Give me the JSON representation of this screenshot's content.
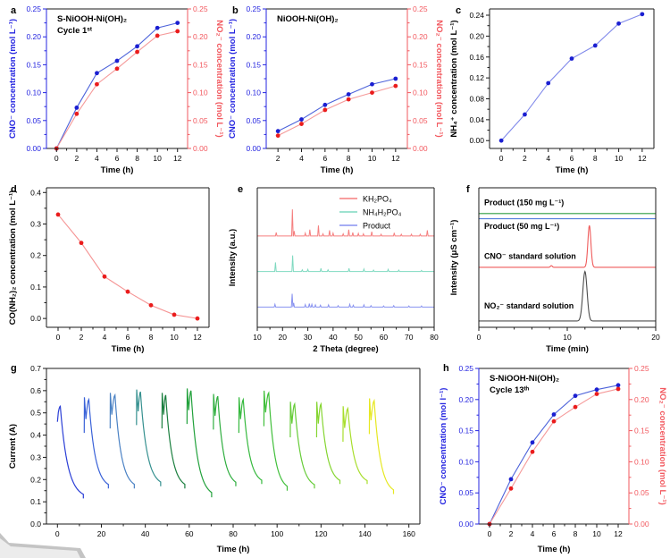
{
  "colors": {
    "blue_axis": "#2424e0",
    "blue_marker": "#1b1fd1",
    "blue_line": "#4d63da",
    "red_axis": "#f2595f",
    "red_marker": "#ea1c1c",
    "red_line": "#f59a9a",
    "frame_black": "#1a1a1a"
  },
  "chart_data": [
    {
      "panel": "a",
      "panel_label": "a",
      "type": "line",
      "dual": true,
      "title": "S-NiOOH-Ni(OH)₂",
      "subtitle": "Cycle 1ˢᵗ",
      "xlabel": "Time (h)",
      "ylabel_left": "CNO⁻ concentration (mol L⁻¹)",
      "ylabel_right": "NO₂⁻ concentration (mol L⁻¹)",
      "xlim": [
        -1,
        13
      ],
      "ylim": [
        0,
        0.25
      ],
      "xticks": [
        0,
        2,
        4,
        6,
        8,
        10,
        12
      ],
      "yticks": [
        0,
        0.05,
        0.1,
        0.15,
        0.2,
        0.25
      ],
      "ydec": 2,
      "x": [
        0,
        2,
        4,
        6,
        8,
        10,
        12
      ],
      "series": [
        {
          "name": "CNO⁻",
          "axis": "left",
          "values": [
            0,
            0.073,
            0.135,
            0.157,
            0.183,
            0.216,
            0.225
          ],
          "line_color": "#4d63da",
          "marker_color": "#1b1fd1"
        },
        {
          "name": "NO₂⁻",
          "axis": "right",
          "values": [
            0,
            0.062,
            0.115,
            0.143,
            0.173,
            0.202,
            0.21
          ],
          "line_color": "#f59a9a",
          "marker_color": "#ea1c1c"
        }
      ]
    },
    {
      "panel": "b",
      "panel_label": "b",
      "type": "line",
      "dual": true,
      "title": "NiOOH-Ni(OH)₂",
      "subtitle": "",
      "xlabel": "Time (h)",
      "ylabel_left": "CNO⁻ concentration (mol L⁻¹)",
      "ylabel_right": "NO₂⁻ concentration (mol L⁻¹)",
      "xlim": [
        1,
        13
      ],
      "ylim": [
        0,
        0.25
      ],
      "xticks": [
        2,
        4,
        6,
        8,
        10,
        12
      ],
      "yticks": [
        0,
        0.05,
        0.1,
        0.15,
        0.2,
        0.25
      ],
      "ydec": 2,
      "x": [
        2,
        4,
        6,
        8,
        10,
        12
      ],
      "series": [
        {
          "name": "CNO⁻",
          "axis": "left",
          "values": [
            0.031,
            0.052,
            0.078,
            0.097,
            0.115,
            0.125
          ],
          "line_color": "#4d63da",
          "marker_color": "#1b1fd1"
        },
        {
          "name": "NO₂⁻",
          "axis": "right",
          "values": [
            0.023,
            0.044,
            0.069,
            0.088,
            0.1,
            0.112
          ],
          "line_color": "#f59a9a",
          "marker_color": "#ea1c1c"
        }
      ]
    },
    {
      "panel": "c",
      "panel_label": "c",
      "type": "line",
      "dual": false,
      "title": "",
      "subtitle": "",
      "xlabel": "Time (h)",
      "ylabel_left": "NH₄⁺ concentration (mol L⁻¹)",
      "xlim": [
        -1,
        13
      ],
      "ylim": [
        -0.015,
        0.252
      ],
      "xticks": [
        0,
        2,
        4,
        6,
        8,
        10,
        12
      ],
      "yticks": [
        0,
        0.04,
        0.08,
        0.12,
        0.16,
        0.2,
        0.24
      ],
      "ydec": 2,
      "x": [
        0,
        2,
        4,
        6,
        8,
        10,
        12
      ],
      "series": [
        {
          "name": "NH₄⁺",
          "axis": "left",
          "values": [
            0,
            0.05,
            0.11,
            0.157,
            0.182,
            0.224,
            0.242
          ],
          "line_color": "#8089ea",
          "marker_color": "#1b1fd1"
        }
      ]
    },
    {
      "panel": "d",
      "panel_label": "d",
      "type": "line",
      "dual": false,
      "title": "",
      "subtitle": "",
      "xlabel": "Time (h)",
      "ylabel_left": "CO(NH₂)₂ concentration (mol L⁻¹)",
      "xlim": [
        -1,
        13
      ],
      "ylim": [
        -0.028,
        0.415
      ],
      "xticks": [
        0,
        2,
        4,
        6,
        8,
        10,
        12
      ],
      "yticks": [
        0,
        0.1,
        0.2,
        0.3,
        0.4
      ],
      "ydec": 1,
      "x": [
        0,
        2,
        4,
        6,
        8,
        10,
        12
      ],
      "series": [
        {
          "name": "CO(NH₂)₂",
          "axis": "left",
          "values": [
            0.33,
            0.24,
            0.133,
            0.085,
            0.042,
            0.012,
            0.0
          ],
          "line_color": "#f59494",
          "marker_color": "#ea1c1c"
        }
      ]
    },
    {
      "panel": "e",
      "panel_label": "e",
      "type": "xrd",
      "xlabel": "2 Theta (degree)",
      "ylabel_left": "Intensity (a.u.)",
      "xlim": [
        10,
        80
      ],
      "xticks": [
        10,
        20,
        30,
        40,
        50,
        60,
        70,
        80
      ],
      "legend": [
        "KH₂PO₄",
        "NH₄H₂PO₄",
        "Product"
      ],
      "series": [
        {
          "name": "KH₂PO₄",
          "color": "#f57f7f",
          "base": 0.655,
          "peaks": [
            [
              17.5,
              0.025
            ],
            [
              23.9,
              0.19
            ],
            [
              24.6,
              0.035
            ],
            [
              29,
              0.02
            ],
            [
              30.8,
              0.045
            ],
            [
              34.2,
              0.075
            ],
            [
              36,
              0.015
            ],
            [
              38.6,
              0.04
            ],
            [
              40,
              0.02
            ],
            [
              44,
              0.015
            ],
            [
              46.2,
              0.045
            ],
            [
              47.8,
              0.025
            ],
            [
              50,
              0.018
            ],
            [
              52,
              0.015
            ],
            [
              55.3,
              0.03
            ],
            [
              59,
              0.012
            ],
            [
              64.2,
              0.022
            ],
            [
              67,
              0.012
            ],
            [
              71,
              0.012
            ],
            [
              74.5,
              0.012
            ],
            [
              77.3,
              0.04
            ]
          ]
        },
        {
          "name": "NH₄H₂PO₄",
          "color": "#7fd9c0",
          "base": 0.4,
          "peaks": [
            [
              17.2,
              0.065
            ],
            [
              24,
              0.115
            ],
            [
              27.8,
              0.012
            ],
            [
              30,
              0.015
            ],
            [
              35.2,
              0.022
            ],
            [
              38,
              0.012
            ],
            [
              46.3,
              0.022
            ],
            [
              52.2,
              0.018
            ],
            [
              56,
              0.01
            ],
            [
              61.8,
              0.015
            ],
            [
              66,
              0.01
            ],
            [
              75,
              0.008
            ]
          ]
        },
        {
          "name": "Product",
          "color": "#8892f0",
          "base": 0.145,
          "peaks": [
            [
              17,
              0.02
            ],
            [
              23.8,
              0.095
            ],
            [
              24.4,
              0.03
            ],
            [
              29,
              0.018
            ],
            [
              30.6,
              0.025
            ],
            [
              31.6,
              0.02
            ],
            [
              33,
              0.016
            ],
            [
              35,
              0.013
            ],
            [
              38.2,
              0.016
            ],
            [
              42,
              0.01
            ],
            [
              46.6,
              0.02
            ],
            [
              48,
              0.013
            ],
            [
              52.2,
              0.016
            ],
            [
              55,
              0.01
            ],
            [
              60,
              0.008
            ],
            [
              64,
              0.01
            ],
            [
              70,
              0.008
            ],
            [
              75,
              0.008
            ]
          ]
        }
      ]
    },
    {
      "panel": "f",
      "panel_label": "f",
      "type": "chromatogram",
      "xlabel": "Time (min)",
      "ylabel_left": "Intensity (μS cm⁻¹)",
      "xlim": [
        0,
        20
      ],
      "xticks": [
        0,
        10,
        20
      ],
      "xminor": 2,
      "traces": [
        {
          "label": "Product (150 mg L⁻¹)",
          "color": "#2f9e41",
          "base": 0.815,
          "label_pos": [
            0.6,
            0.875
          ]
        },
        {
          "label": "Product (50 mg L⁻¹)",
          "color": "#3f6fd8",
          "base": 0.778,
          "label_pos": [
            0.6,
            0.705
          ]
        },
        {
          "label": "CNO⁻ standard solution",
          "color": "#ef5b5b",
          "base": 0.43,
          "label_pos": [
            0.6,
            0.49
          ],
          "peaks": [
            [
              12.5,
              0.3,
              0.17
            ],
            [
              8.2,
              0.012,
              0.1
            ]
          ]
        },
        {
          "label": "NO₂⁻ standard solution",
          "color": "#4d4d4d",
          "base": 0.045,
          "label_pos": [
            0.6,
            0.135
          ],
          "peaks": [
            [
              12.0,
              0.355,
              0.24
            ]
          ]
        }
      ]
    },
    {
      "panel": "g",
      "panel_label": "g",
      "type": "cycles",
      "xlabel": "Time (h)",
      "ylabel_left": "Current (A)",
      "xlim": [
        -5,
        165
      ],
      "ylim": [
        0,
        0.7
      ],
      "xticks": [
        0,
        20,
        40,
        60,
        80,
        100,
        120,
        140,
        160
      ],
      "xminor": 10,
      "yticks": [
        0,
        0.1,
        0.2,
        0.3,
        0.4,
        0.5,
        0.6,
        0.7
      ],
      "ydec": 1,
      "cycles": [
        {
          "t0": 0,
          "tp": 1.3,
          "peak": 0.53,
          "t1": 11.8,
          "v1": 0.115,
          "spike": false,
          "color": "#2b3fd6"
        },
        {
          "t0": 12.2,
          "tp": 14.3,
          "peak": 0.56,
          "t1": 23.2,
          "v1": 0.16,
          "spike": true,
          "color": "#3a62d8"
        },
        {
          "t0": 24.0,
          "tp": 26.2,
          "peak": 0.58,
          "t1": 35.0,
          "v1": 0.16,
          "spike": true,
          "color": "#4b82c4"
        },
        {
          "t0": 36.0,
          "tp": 37.8,
          "peak": 0.595,
          "t1": 47.0,
          "v1": 0.17,
          "spike": true,
          "color": "#35908f"
        },
        {
          "t0": 47.6,
          "tp": 49.3,
          "peak": 0.58,
          "t1": 58.0,
          "v1": 0.16,
          "spike": true,
          "color": "#1b7f3f"
        },
        {
          "t0": 59.0,
          "tp": 60.8,
          "peak": 0.6,
          "t1": 70.2,
          "v1": 0.12,
          "spike": true,
          "color": "#21a13b"
        },
        {
          "t0": 71.0,
          "tp": 73.0,
          "peak": 0.575,
          "t1": 81.2,
          "v1": 0.17,
          "spike": true,
          "color": "#2fae3f"
        },
        {
          "t0": 82.6,
          "tp": 84.6,
          "peak": 0.56,
          "t1": 93.0,
          "v1": 0.18,
          "spike": true,
          "color": "#36b93e"
        },
        {
          "t0": 94.0,
          "tp": 96.2,
          "peak": 0.59,
          "t1": 104.6,
          "v1": 0.15,
          "spike": true,
          "color": "#40bf3a"
        },
        {
          "t0": 106.0,
          "tp": 108.0,
          "peak": 0.54,
          "t1": 117.0,
          "v1": 0.16,
          "spike": true,
          "color": "#66cc38"
        },
        {
          "t0": 118.0,
          "tp": 120.0,
          "peak": 0.54,
          "t1": 128.6,
          "v1": 0.18,
          "spike": true,
          "color": "#85d531"
        },
        {
          "t0": 130.0,
          "tp": 132.2,
          "peak": 0.52,
          "t1": 141.0,
          "v1": 0.18,
          "spike": true,
          "color": "#a8de2c"
        },
        {
          "t0": 142.0,
          "tp": 144.2,
          "peak": 0.555,
          "t1": 153.0,
          "v1": 0.135,
          "spike": true,
          "color": "#e6e822"
        }
      ]
    },
    {
      "panel": "h",
      "panel_label": "h",
      "type": "line",
      "dual": true,
      "title": "S-NiOOH-Ni(OH)₂",
      "subtitle": "Cycle 13ᵗʰ",
      "xlabel": "Time (h)",
      "ylabel_left": "CNO⁻ concentration (mol l⁻¹)",
      "ylabel_right": "NO₂⁻ concentration (mol L⁻¹)",
      "xlim": [
        -1,
        13
      ],
      "ylim": [
        0,
        0.25
      ],
      "xticks": [
        0,
        2,
        4,
        6,
        8,
        10,
        12
      ],
      "yticks": [
        0,
        0.05,
        0.1,
        0.15,
        0.2,
        0.25
      ],
      "ydec": 2,
      "x": [
        0,
        2,
        4,
        6,
        8,
        10,
        12
      ],
      "series": [
        {
          "name": "CNO⁻",
          "axis": "left",
          "values": [
            0,
            0.072,
            0.131,
            0.176,
            0.206,
            0.216,
            0.223
          ],
          "line_color": "#4d63da",
          "marker_color": "#1b1fd1"
        },
        {
          "name": "NO₂⁻",
          "axis": "right",
          "values": [
            0,
            0.057,
            0.116,
            0.165,
            0.188,
            0.209,
            0.217
          ],
          "line_color": "#f59a9a",
          "marker_color": "#ea1c1c"
        }
      ]
    }
  ]
}
